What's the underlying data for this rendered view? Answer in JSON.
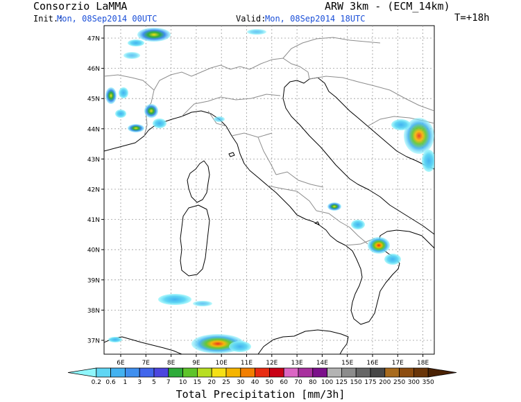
{
  "header": {
    "title_left": "Consorzio LaMMA",
    "title_right": "ARW 3km - (ECM_14km)",
    "init_label": "Init.:",
    "init_value": "Mon, 08Sep2014 00UTC",
    "valid_label": "Valid:",
    "valid_value": "Mon, 08Sep2014 18UTC",
    "forecast_step": "T=+18h"
  },
  "map": {
    "lat_labels": [
      "47N",
      "46N",
      "45N",
      "44N",
      "43N",
      "42N",
      "41N",
      "40N",
      "39N",
      "38N",
      "37N"
    ],
    "lon_labels": [
      "6E",
      "7E",
      "8E",
      "9E",
      "10E",
      "11E",
      "12E",
      "13E",
      "14E",
      "15E",
      "16E",
      "17E",
      "18E"
    ],
    "grid": true,
    "land_color": "#ffffff",
    "coastline_color": "#000000",
    "border_color": "#8c8c8c"
  },
  "colorbar": {
    "title": "Total Precipitation [mm/3h]",
    "labels": [
      "0.2",
      "0.6",
      "1",
      "3",
      "5",
      "7",
      "10",
      "15",
      "20",
      "25",
      "30",
      "40",
      "50",
      "60",
      "70",
      "80",
      "100",
      "125",
      "150",
      "175",
      "200",
      "250",
      "300",
      "350"
    ],
    "colors": [
      "#8ff6fb",
      "#60d6f4",
      "#43b2f0",
      "#3f8fef",
      "#4166ec",
      "#4c46df",
      "#2eab3a",
      "#5ec42b",
      "#b7de22",
      "#f5e016",
      "#f5b400",
      "#f27f00",
      "#e82c12",
      "#c90015",
      "#db66c4",
      "#a8309e",
      "#7b0f8a",
      "#b3b3b3",
      "#8c8c8c",
      "#666666",
      "#474747",
      "#a86b1e",
      "#8c4c0f",
      "#6a3508",
      "#4a2204"
    ]
  }
}
